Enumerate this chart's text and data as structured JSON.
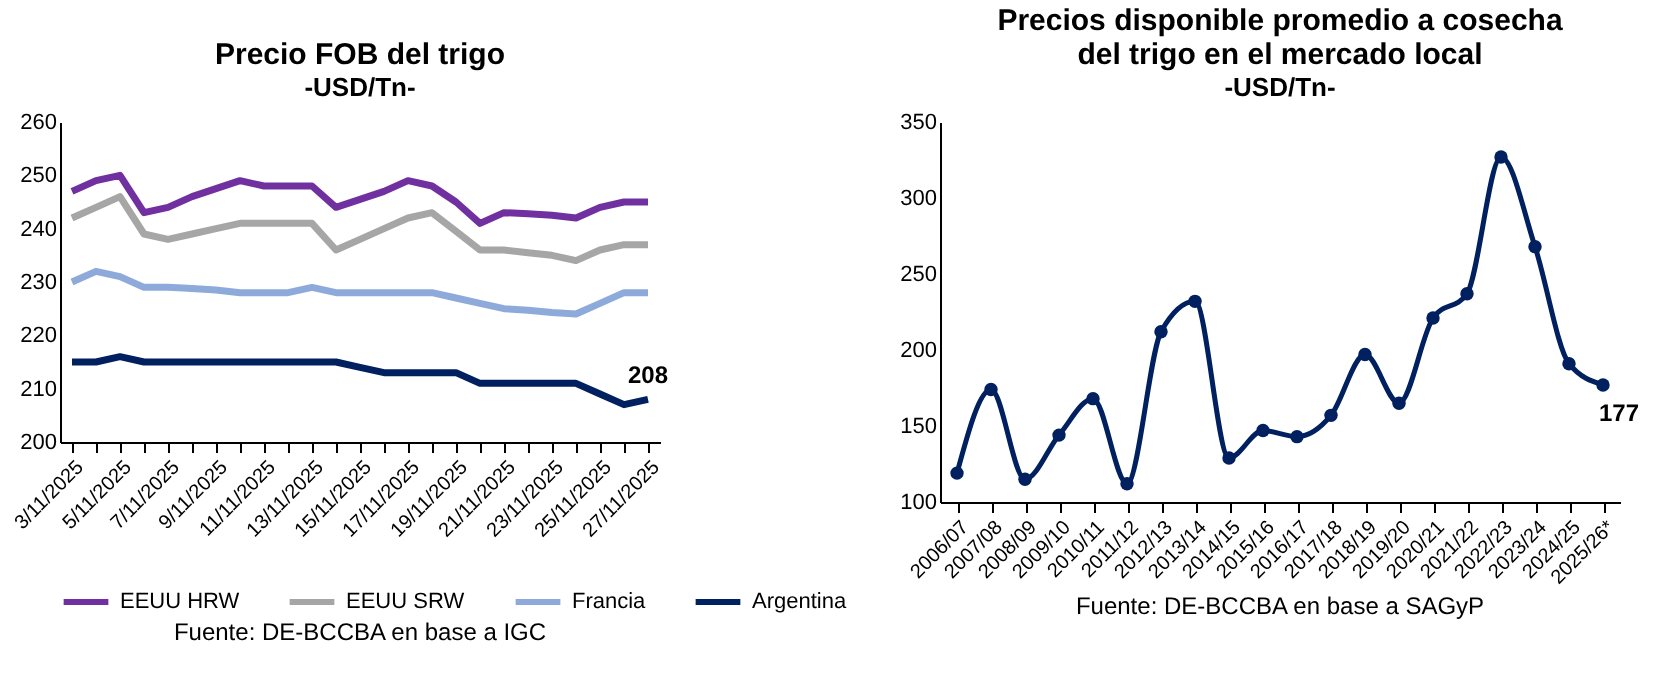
{
  "chart_data": [
    {
      "type": "line",
      "title": "Precio FOB del trigo",
      "subtitle": "-USD/Tn-",
      "categories": [
        "3/11/2025",
        null,
        "5/11/2025",
        null,
        "7/11/2025",
        null,
        "9/11/2025",
        null,
        "11/11/2025",
        null,
        "13/11/2025",
        null,
        "15/11/2025",
        null,
        "17/11/2025",
        null,
        "19/11/2025",
        null,
        "21/11/2025",
        null,
        "23/11/2025",
        null,
        "25/11/2025",
        null,
        "27/11/2025"
      ],
      "series": [
        {
          "name": "EEUU HRW",
          "color": "#7030a0",
          "values": [
            247,
            249,
            250,
            243,
            244,
            246,
            247.5,
            249,
            248,
            248,
            248,
            244,
            245.5,
            247,
            249,
            248,
            245,
            241,
            243,
            242.8,
            242.5,
            242,
            244,
            245,
            245
          ]
        },
        {
          "name": "EEUU SRW",
          "color": "#a6a6a6",
          "values": [
            242,
            244,
            246,
            239,
            238,
            239,
            240,
            241,
            241,
            241,
            241,
            236,
            238,
            240,
            242,
            243,
            239.5,
            236,
            236,
            235.5,
            235,
            234,
            236,
            237,
            237
          ]
        },
        {
          "name": "Francia",
          "color": "#8eaadb",
          "values": [
            230,
            232,
            231,
            229,
            229,
            228.8,
            228.5,
            228,
            228,
            228,
            229,
            228,
            228,
            228,
            228,
            228,
            227,
            226,
            225,
            224.7,
            224.3,
            224,
            226,
            228,
            228
          ]
        },
        {
          "name": "Argentina",
          "color": "#002060",
          "values": [
            215,
            215,
            216,
            215,
            215,
            215,
            215,
            215,
            215,
            215,
            215,
            215,
            214,
            213,
            213,
            213,
            213,
            211,
            211,
            211,
            211,
            211,
            209,
            207,
            208
          ],
          "value_labels": [
            null,
            null,
            null,
            null,
            null,
            null,
            null,
            null,
            null,
            null,
            null,
            null,
            null,
            null,
            null,
            null,
            null,
            null,
            null,
            null,
            null,
            null,
            null,
            null,
            "208"
          ]
        }
      ],
      "ylim": [
        200,
        260
      ],
      "yticks": [
        200,
        210,
        220,
        230,
        240,
        250,
        260
      ],
      "grid": false,
      "legend": "bottom",
      "marker": "none",
      "line_style": "solid",
      "annotations": [
        "Fuente: DE-BCCBA en base a IGC"
      ]
    },
    {
      "type": "line",
      "title": "Precios disponible promedio a cosecha\ndel trigo en el mercado local",
      "subtitle": "-USD/Tn-",
      "categories": [
        "2006/07",
        "2007/08",
        "2008/09",
        "2009/10",
        "2010/11",
        "2011/12",
        "2012/13",
        "2013/14",
        "2014/15",
        "2015/16",
        "2016/17",
        "2017/18",
        "2018/19",
        "2019/20",
        "2020/21",
        "2021/22",
        "2022/23",
        "2023/24",
        "2024/25",
        "2025/26*"
      ],
      "series": [
        {
          "color": "#002060",
          "values": [
            119,
            174,
            115,
            144,
            168,
            112,
            212,
            232,
            129,
            147,
            143,
            157,
            197,
            165,
            221,
            237,
            327,
            268,
            191,
            177
          ],
          "value_labels": [
            null,
            null,
            null,
            null,
            null,
            null,
            null,
            null,
            null,
            null,
            null,
            null,
            null,
            null,
            null,
            null,
            null,
            null,
            null,
            "177"
          ]
        }
      ],
      "ylim": [
        100,
        350
      ],
      "yticks": [
        100,
        150,
        200,
        250,
        300,
        350
      ],
      "grid": false,
      "marker": "circle",
      "line_style": "solid",
      "annotations": [
        "Fuente: DE-BCCBA en base a SAGyP"
      ]
    }
  ]
}
